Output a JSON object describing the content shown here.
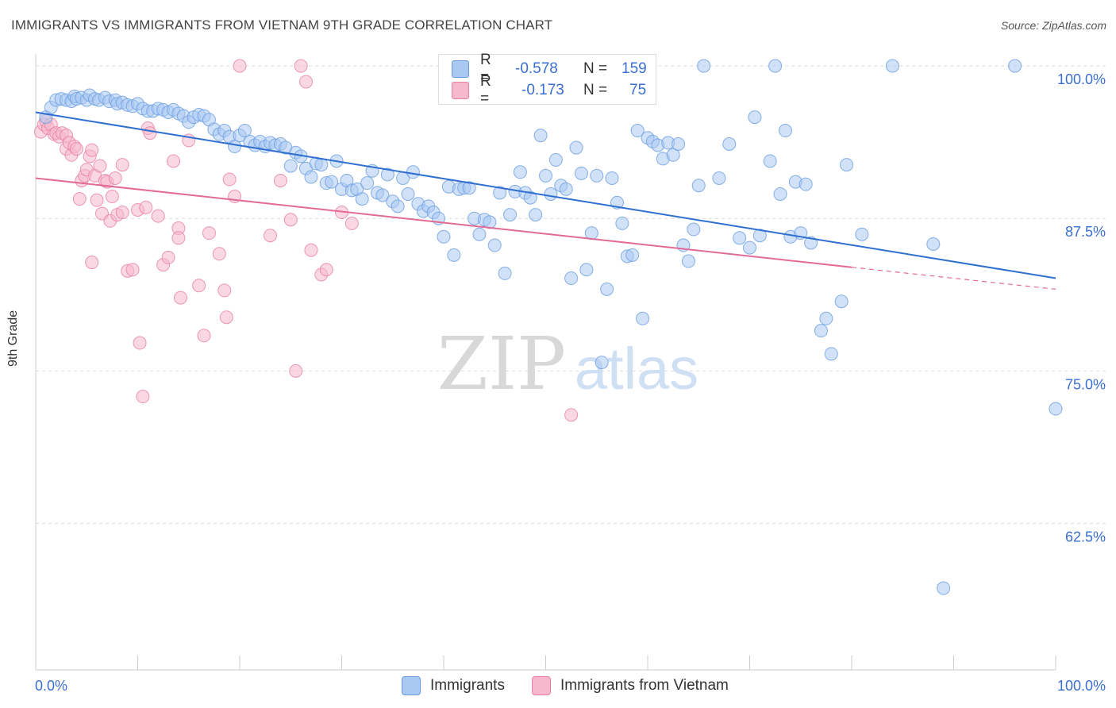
{
  "header": {
    "title": "IMMIGRANTS VS IMMIGRANTS FROM VIETNAM 9TH GRADE CORRELATION CHART",
    "source": "Source: ZipAtlas.com"
  },
  "watermark": {
    "zip": "ZIP",
    "atlas": "atlas"
  },
  "legend": {
    "r_label": "R =",
    "n_label": "N =",
    "rows": [
      {
        "r": "-0.578",
        "n": "159",
        "color": "#a9c8f2"
      },
      {
        "r": "-0.173",
        "n": "75",
        "color": "#f6b8cc"
      }
    ]
  },
  "chart_data": {
    "type": "scatter",
    "title": "IMMIGRANTS VS IMMIGRANTS FROM VIETNAM 9TH GRADE CORRELATION CHART",
    "xlabel": "",
    "ylabel": "9th Grade",
    "xlim": [
      0,
      100
    ],
    "ylim": [
      50.5,
      101.5
    ],
    "x_tick_labels": [
      "0.0%",
      "100.0%"
    ],
    "y_ticks": [
      100,
      87.5,
      75,
      62.5
    ],
    "y_tick_labels": [
      "100.0%",
      "87.5%",
      "75.0%",
      "62.5%"
    ],
    "grid": true,
    "legend_position": "bottom",
    "series": [
      {
        "name": "Immigrants",
        "color": "#6a9de0",
        "fill": "#a9c8f2",
        "trend": {
          "x0": 0,
          "y0": 96.2,
          "x1": 100,
          "y1": 82.6
        },
        "points": [
          [
            1,
            95.8
          ],
          [
            1.5,
            96.6
          ],
          [
            2,
            97.2
          ],
          [
            2.5,
            97.3
          ],
          [
            3,
            97.2
          ],
          [
            3.5,
            97.1
          ],
          [
            3.8,
            97.5
          ],
          [
            4,
            97.3
          ],
          [
            4.5,
            97.4
          ],
          [
            5,
            97.2
          ],
          [
            5.3,
            97.6
          ],
          [
            5.8,
            97.3
          ],
          [
            6.2,
            97.2
          ],
          [
            6.8,
            97.4
          ],
          [
            7.2,
            97.1
          ],
          [
            7.8,
            97.2
          ],
          [
            8,
            96.9
          ],
          [
            8.5,
            97.0
          ],
          [
            9,
            96.8
          ],
          [
            9.5,
            96.7
          ],
          [
            10,
            96.9
          ],
          [
            10.5,
            96.5
          ],
          [
            11,
            96.3
          ],
          [
            11.5,
            96.3
          ],
          [
            12,
            96.5
          ],
          [
            12.5,
            96.4
          ],
          [
            13,
            96.2
          ],
          [
            13.5,
            96.4
          ],
          [
            14,
            96.1
          ],
          [
            14.5,
            95.9
          ],
          [
            15,
            95.4
          ],
          [
            15.5,
            95.8
          ],
          [
            16,
            96.0
          ],
          [
            16.5,
            95.9
          ],
          [
            17,
            95.6
          ],
          [
            17.5,
            94.8
          ],
          [
            18,
            94.4
          ],
          [
            18.5,
            94.7
          ],
          [
            19,
            94.2
          ],
          [
            19.5,
            93.4
          ],
          [
            20,
            94.3
          ],
          [
            20.5,
            94.7
          ],
          [
            21,
            93.8
          ],
          [
            21.5,
            93.5
          ],
          [
            22,
            93.8
          ],
          [
            22.5,
            93.4
          ],
          [
            23,
            93.7
          ],
          [
            23.5,
            93.5
          ],
          [
            24,
            93.6
          ],
          [
            24.5,
            93.3
          ],
          [
            25,
            91.8
          ],
          [
            25.5,
            92.9
          ],
          [
            26,
            92.6
          ],
          [
            26.5,
            91.6
          ],
          [
            27,
            90.9
          ],
          [
            27.5,
            92.0
          ],
          [
            28,
            91.9
          ],
          [
            28.5,
            90.4
          ],
          [
            29,
            90.5
          ],
          [
            29.5,
            92.2
          ],
          [
            30,
            89.9
          ],
          [
            30.5,
            90.6
          ],
          [
            31,
            89.8
          ],
          [
            31.5,
            89.9
          ],
          [
            32,
            89.1
          ],
          [
            32.5,
            90.4
          ],
          [
            33,
            91.4
          ],
          [
            33.5,
            89.6
          ],
          [
            34,
            89.4
          ],
          [
            34.5,
            91.1
          ],
          [
            35,
            88.9
          ],
          [
            35.5,
            88.5
          ],
          [
            36,
            90.8
          ],
          [
            36.5,
            89.5
          ],
          [
            37,
            91.3
          ],
          [
            37.5,
            88.7
          ],
          [
            38,
            88.1
          ],
          [
            38.5,
            88.5
          ],
          [
            39,
            88.0
          ],
          [
            39.5,
            87.5
          ],
          [
            40,
            86.0
          ],
          [
            40.5,
            90.1
          ],
          [
            41,
            84.5
          ],
          [
            41.5,
            89.9
          ],
          [
            42,
            90.0
          ],
          [
            42.5,
            90.0
          ],
          [
            43,
            87.5
          ],
          [
            43.5,
            86.2
          ],
          [
            44,
            87.4
          ],
          [
            44.5,
            87.2
          ],
          [
            45,
            85.3
          ],
          [
            45.5,
            89.6
          ],
          [
            46,
            83.0
          ],
          [
            46.5,
            87.8
          ],
          [
            47,
            89.7
          ],
          [
            47.5,
            91.3
          ],
          [
            48,
            89.6
          ],
          [
            48.5,
            89.2
          ],
          [
            49,
            87.8
          ],
          [
            49.5,
            94.3
          ],
          [
            50,
            91.0
          ],
          [
            50.5,
            89.5
          ],
          [
            51,
            92.3
          ],
          [
            51.5,
            90.2
          ],
          [
            52,
            89.9
          ],
          [
            52.5,
            82.6
          ],
          [
            53,
            93.3
          ],
          [
            53.5,
            91.2
          ],
          [
            54,
            83.3
          ],
          [
            54.5,
            86.3
          ],
          [
            55,
            91.0
          ],
          [
            55.5,
            75.7
          ],
          [
            56,
            81.7
          ],
          [
            56.5,
            90.8
          ],
          [
            57,
            88.8
          ],
          [
            57.5,
            87.1
          ],
          [
            58,
            84.4
          ],
          [
            58.5,
            84.5
          ],
          [
            59,
            94.7
          ],
          [
            59.5,
            79.3
          ],
          [
            60,
            94.1
          ],
          [
            60.5,
            93.8
          ],
          [
            61,
            93.5
          ],
          [
            61.5,
            92.4
          ],
          [
            62,
            93.7
          ],
          [
            62.5,
            92.7
          ],
          [
            63,
            93.6
          ],
          [
            63.5,
            85.3
          ],
          [
            64,
            84.0
          ],
          [
            64.5,
            86.6
          ],
          [
            65,
            90.2
          ],
          [
            65.5,
            100
          ],
          [
            67,
            90.8
          ],
          [
            68,
            93.6
          ],
          [
            69,
            85.9
          ],
          [
            70,
            85.1
          ],
          [
            70.5,
            95.8
          ],
          [
            71,
            86.1
          ],
          [
            72,
            92.2
          ],
          [
            72.5,
            100
          ],
          [
            73,
            89.5
          ],
          [
            73.5,
            94.7
          ],
          [
            74,
            86.0
          ],
          [
            74.5,
            90.5
          ],
          [
            75,
            86.3
          ],
          [
            75.5,
            90.3
          ],
          [
            76,
            85.5
          ],
          [
            77,
            78.3
          ],
          [
            77.5,
            79.3
          ],
          [
            78,
            76.4
          ],
          [
            79,
            80.7
          ],
          [
            79.5,
            91.9
          ],
          [
            81,
            86.2
          ],
          [
            84,
            100
          ],
          [
            88,
            85.4
          ],
          [
            89,
            57.2
          ],
          [
            96,
            100
          ],
          [
            100,
            71.9
          ]
        ]
      },
      {
        "name": "Immigrants from Vietnam",
        "color": "#e77fa2",
        "fill": "#f6b8cc",
        "trend": {
          "x0": 0,
          "y0": 90.8,
          "x1": 80,
          "y1": 83.5,
          "dashed_to": {
            "x": 100,
            "y": 81.7
          }
        },
        "points": [
          [
            0.5,
            94.6
          ],
          [
            0.8,
            95.2
          ],
          [
            1,
            95.5
          ],
          [
            1.2,
            94.9
          ],
          [
            1.5,
            95.2
          ],
          [
            1.8,
            94.4
          ],
          [
            2,
            94.5
          ],
          [
            2.3,
            94.2
          ],
          [
            2.6,
            94.5
          ],
          [
            3,
            94.3
          ],
          [
            3,
            93.2
          ],
          [
            3.3,
            93.7
          ],
          [
            3.5,
            92.7
          ],
          [
            3.8,
            93.4
          ],
          [
            4,
            93.2
          ],
          [
            4.3,
            89.1
          ],
          [
            4.5,
            90.6
          ],
          [
            4.8,
            91.0
          ],
          [
            5,
            91.5
          ],
          [
            5.3,
            92.6
          ],
          [
            5.5,
            93.1
          ],
          [
            5.5,
            83.9
          ],
          [
            5.8,
            91.0
          ],
          [
            6,
            89.0
          ],
          [
            6.3,
            91.8
          ],
          [
            6.5,
            87.9
          ],
          [
            6.8,
            90.6
          ],
          [
            7,
            90.5
          ],
          [
            7.3,
            87.3
          ],
          [
            7.5,
            89.3
          ],
          [
            7.8,
            90.8
          ],
          [
            8,
            87.8
          ],
          [
            8.5,
            91.9
          ],
          [
            8.5,
            88.0
          ],
          [
            9,
            83.2
          ],
          [
            9.5,
            83.3
          ],
          [
            10,
            88.2
          ],
          [
            10.2,
            77.3
          ],
          [
            10.5,
            72.9
          ],
          [
            10.8,
            88.4
          ],
          [
            11,
            94.9
          ],
          [
            11.2,
            94.5
          ],
          [
            12,
            87.7
          ],
          [
            12.5,
            83.7
          ],
          [
            13,
            84.3
          ],
          [
            13.5,
            92.2
          ],
          [
            14,
            86.7
          ],
          [
            14,
            85.9
          ],
          [
            14.2,
            81.0
          ],
          [
            15,
            93.9
          ],
          [
            16,
            82.0
          ],
          [
            16.5,
            77.9
          ],
          [
            17,
            86.3
          ],
          [
            18,
            84.6
          ],
          [
            18.5,
            81.6
          ],
          [
            18.7,
            79.4
          ],
          [
            19,
            90.7
          ],
          [
            19.5,
            89.3
          ],
          [
            20,
            100
          ],
          [
            23,
            86.1
          ],
          [
            24,
            90.6
          ],
          [
            25,
            87.4
          ],
          [
            25.5,
            75.0
          ],
          [
            26,
            100
          ],
          [
            26.5,
            98.7
          ],
          [
            27,
            84.9
          ],
          [
            28,
            82.9
          ],
          [
            28.5,
            83.3
          ],
          [
            30,
            88.0
          ],
          [
            31,
            87.1
          ],
          [
            52.5,
            71.4
          ],
          [
            56,
            100
          ]
        ]
      }
    ]
  }
}
